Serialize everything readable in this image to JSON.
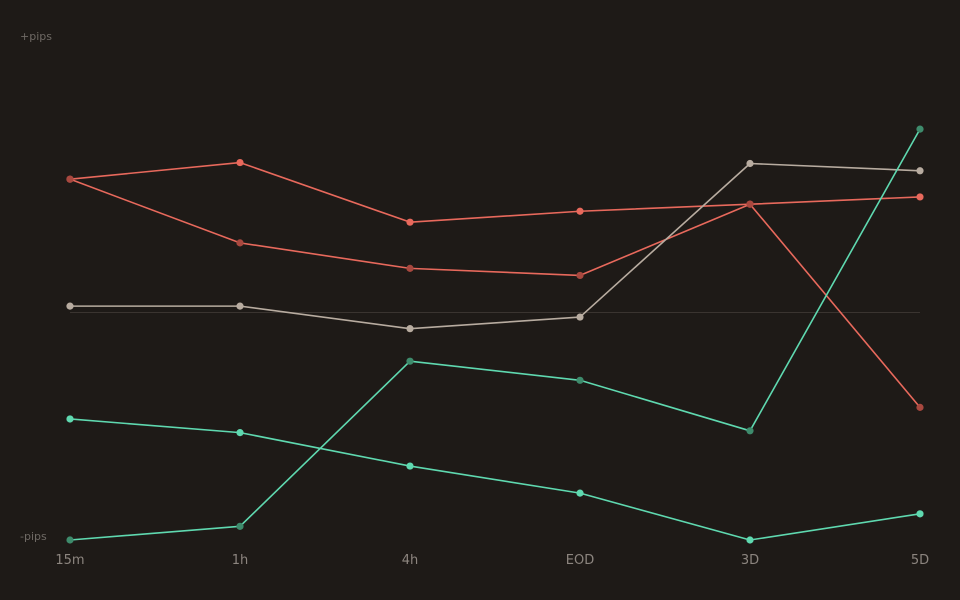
{
  "chart_data": {
    "type": "line",
    "title": "",
    "xlabel": "",
    "ylabel_top": "+pips",
    "ylabel_bottom": "-pips",
    "categories": [
      "15m",
      "1h",
      "4h",
      "EOD",
      "3D",
      "5D"
    ],
    "ylim": [
      -100,
      100
    ],
    "zero_line": 0,
    "grid": false,
    "series": [
      {
        "color": "#e8695c",
        "marker_color": "#e8695c",
        "values": [
          58.6,
          65.9,
          39.7,
          44.5,
          47.6,
          50.8
        ]
      },
      {
        "color": "#e8695c",
        "marker_color": "#a8483f",
        "values": [
          58.6,
          30.6,
          19.4,
          16.3,
          47.6,
          -41.7
        ]
      },
      {
        "color": "#b8aca0",
        "marker_color": "#b8aca0",
        "values": [
          2.8,
          2.8,
          -7.1,
          -2.0,
          65.5,
          62.3
        ]
      },
      {
        "color": "#5fd9b0",
        "marker_color": "#3e8b6c",
        "values": [
          -100.0,
          -94.0,
          -21.4,
          -29.8,
          -52.0,
          80.6
        ]
      },
      {
        "color": "#5fd9b0",
        "marker_color": "#5fd9b0",
        "values": [
          -46.8,
          -52.8,
          -67.5,
          -79.4,
          -100.0,
          -88.5
        ]
      }
    ]
  }
}
